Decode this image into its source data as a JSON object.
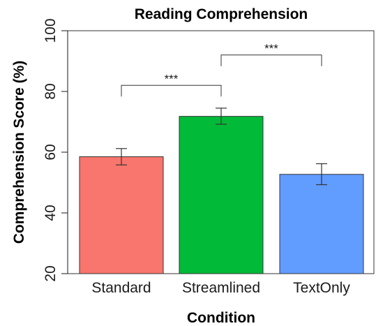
{
  "chart_data": {
    "type": "bar",
    "title": "Reading Comprehension",
    "xlabel": "Condition",
    "ylabel": "Comprehension Score (%)",
    "ylim": [
      20,
      100
    ],
    "yticks": [
      20,
      40,
      60,
      80,
      100
    ],
    "categories": [
      "Standard",
      "Streamlined",
      "TextOnly"
    ],
    "values": [
      58.5,
      71.8,
      52.7
    ],
    "error_low": [
      55.8,
      69.2,
      49.3
    ],
    "error_high": [
      61.2,
      74.5,
      56.2
    ],
    "colors": [
      "#f8766d",
      "#00ba38",
      "#619cff"
    ],
    "grid": false,
    "significance": [
      {
        "from": "Standard",
        "to": "Streamlined",
        "label": "***",
        "level": 82
      },
      {
        "from": "Streamlined",
        "to": "TextOnly",
        "label": "***",
        "level": 92
      }
    ]
  }
}
